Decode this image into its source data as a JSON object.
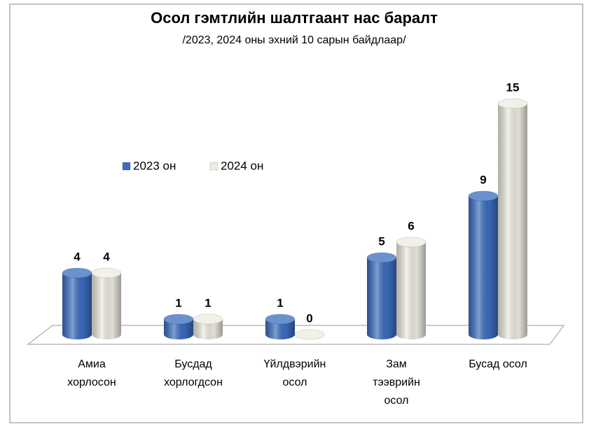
{
  "chart_data": {
    "type": "bar",
    "title": "Осол гэмтлийн шалтгаант нас баралт",
    "subtitle": "/2023, 2024 оны эхний 10 сарын байдлаар/",
    "categories": [
      "Амиа\nхорлосон",
      "Бусдад\nхорлогдсон",
      "Үйлдвэрийн\nосол",
      "Зам\nтээврийн\nосол",
      "Бусад осол"
    ],
    "series": [
      {
        "name": "2023 он",
        "color": "#3a6cbf",
        "values": [
          4,
          1,
          1,
          5,
          9
        ]
      },
      {
        "name": "2024 он",
        "color": "#eeece1",
        "values": [
          4,
          1,
          0,
          6,
          15
        ]
      }
    ]
  }
}
